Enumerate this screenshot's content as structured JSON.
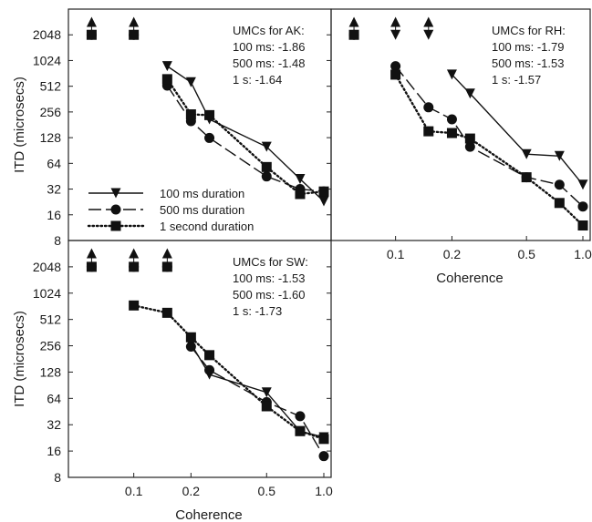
{
  "chart_data": [
    {
      "id": "AK",
      "type": "line",
      "scale": {
        "x": "log",
        "y": "log2"
      },
      "xlim": [
        0.0453,
        1.0
      ],
      "ylim": [
        8,
        4096
      ],
      "y_ticks": [
        8,
        16,
        32,
        64,
        128,
        256,
        512,
        1024,
        2048
      ],
      "x_ticks": [],
      "ylabel": "ITD (microsecs)",
      "xlabel": "",
      "annotation": [
        "UMCs for AK:",
        "100 ms: -1.86",
        "500 ms: -1.48",
        "1 s: -1.64"
      ],
      "legend": {
        "placement": "lower-left",
        "entries": [
          {
            "series": "100 ms",
            "label": "100 ms duration"
          },
          {
            "series": "500 ms",
            "label": "500 ms duration"
          },
          {
            "series": "1 s",
            "label": "1 second duration"
          }
        ]
      },
      "series": [
        {
          "name": "100 ms duration",
          "key": "100 ms",
          "marker": "triangle-down",
          "dash": "solid",
          "x": [
            0.15,
            0.2,
            0.25,
            0.5,
            0.75,
            1.0
          ],
          "y": [
            880,
            570,
            210,
            100,
            42,
            23
          ]
        },
        {
          "name": "500 ms duration",
          "key": "500 ms",
          "marker": "circle",
          "dash": "long-dash",
          "x": [
            0.15,
            0.2,
            0.25,
            0.5,
            0.75,
            1.0
          ],
          "y": [
            520,
            200,
            127,
            45,
            32,
            30
          ]
        },
        {
          "name": "1 second duration",
          "key": "1 s",
          "marker": "square",
          "dash": "dotted",
          "x": [
            0.15,
            0.2,
            0.25,
            0.5,
            0.75,
            1.0
          ],
          "y": [
            620,
            240,
            235,
            58,
            28,
            30
          ]
        }
      ],
      "offscale": [
        {
          "x": 0.06,
          "markers": [
            "triangle-up",
            "circle",
            "square"
          ]
        },
        {
          "x": 0.1,
          "markers": [
            "triangle-up",
            "circle",
            "square"
          ]
        }
      ]
    },
    {
      "id": "RH",
      "type": "line",
      "scale": {
        "x": "log",
        "y": "log2"
      },
      "xlim": [
        0.0453,
        1.0
      ],
      "ylim": [
        8,
        4096
      ],
      "y_ticks": [],
      "x_ticks": [
        0.1,
        0.2,
        0.5,
        1.0
      ],
      "x_tick_labels": [
        "0.1",
        "0.2",
        "0.5",
        "1.0"
      ],
      "ylabel": "",
      "xlabel": "Coherence",
      "annotation": [
        "UMCs for RH:",
        "100 ms: -1.79",
        "500 ms: -1.53",
        "1 s: -1.57"
      ],
      "series": [
        {
          "name": "100 ms duration",
          "key": "100 ms",
          "marker": "triangle-down",
          "dash": "solid",
          "x": [
            0.2,
            0.25,
            0.5,
            0.75,
            1.0
          ],
          "y": [
            700,
            420,
            82,
            78,
            36
          ]
        },
        {
          "name": "500 ms duration",
          "key": "500 ms",
          "marker": "circle",
          "dash": "long-dash",
          "x": [
            0.1,
            0.15,
            0.2,
            0.25,
            0.5,
            0.75,
            1.0
          ],
          "y": [
            880,
            290,
            210,
            100,
            44,
            36,
            20
          ]
        },
        {
          "name": "1 second duration",
          "key": "1 s",
          "marker": "square",
          "dash": "dotted",
          "x": [
            0.1,
            0.15,
            0.2,
            0.25,
            0.5,
            0.75,
            1.0
          ],
          "y": [
            700,
            152,
            145,
            125,
            44,
            22,
            12
          ]
        }
      ],
      "offscale": [
        {
          "x": 0.06,
          "markers": [
            "triangle-up",
            "circle",
            "square"
          ]
        },
        {
          "x": 0.1,
          "markers": [
            "triangle-up",
            "triangle-down"
          ]
        },
        {
          "x": 0.15,
          "markers": [
            "triangle-up",
            "triangle-down"
          ]
        }
      ]
    },
    {
      "id": "SW",
      "type": "line",
      "scale": {
        "x": "log",
        "y": "log2"
      },
      "xlim": [
        0.0453,
        1.0
      ],
      "ylim": [
        8,
        4096
      ],
      "y_ticks": [
        8,
        16,
        32,
        64,
        128,
        256,
        512,
        1024,
        2048
      ],
      "x_ticks": [
        0.1,
        0.2,
        0.5,
        1.0
      ],
      "x_tick_labels": [
        "0.1",
        "0.2",
        "0.5",
        "1.0"
      ],
      "ylabel": "ITD (microsecs)",
      "xlabel": "Coherence",
      "annotation": [
        "UMCs for SW:",
        "100 ms: -1.53",
        "500 ms: -1.60",
        "1 s: -1.73"
      ],
      "series": [
        {
          "name": "100 ms duration",
          "key": "100 ms",
          "marker": "triangle-down",
          "dash": "solid",
          "x": [
            0.2,
            0.25,
            0.5,
            0.75,
            1.0
          ],
          "y": [
            270,
            120,
            75,
            27,
            23
          ]
        },
        {
          "name": "500 ms duration",
          "key": "500 ms",
          "marker": "circle",
          "dash": "long-dash",
          "x": [
            0.2,
            0.25,
            0.5,
            0.75,
            1.0
          ],
          "y": [
            250,
            135,
            58,
            40,
            14
          ]
        },
        {
          "name": "1 second duration",
          "key": "1 s",
          "marker": "square",
          "dash": "dotted",
          "x": [
            0.1,
            0.15,
            0.2,
            0.25,
            0.5,
            0.75,
            1.0
          ],
          "y": [
            740,
            610,
            320,
            200,
            52,
            27,
            22
          ]
        }
      ],
      "offscale": [
        {
          "x": 0.06,
          "markers": [
            "triangle-up",
            "circle",
            "square"
          ]
        },
        {
          "x": 0.1,
          "markers": [
            "triangle-up",
            "circle",
            "square"
          ]
        },
        {
          "x": 0.15,
          "markers": [
            "triangle-up",
            "circle",
            "square"
          ]
        }
      ]
    }
  ]
}
